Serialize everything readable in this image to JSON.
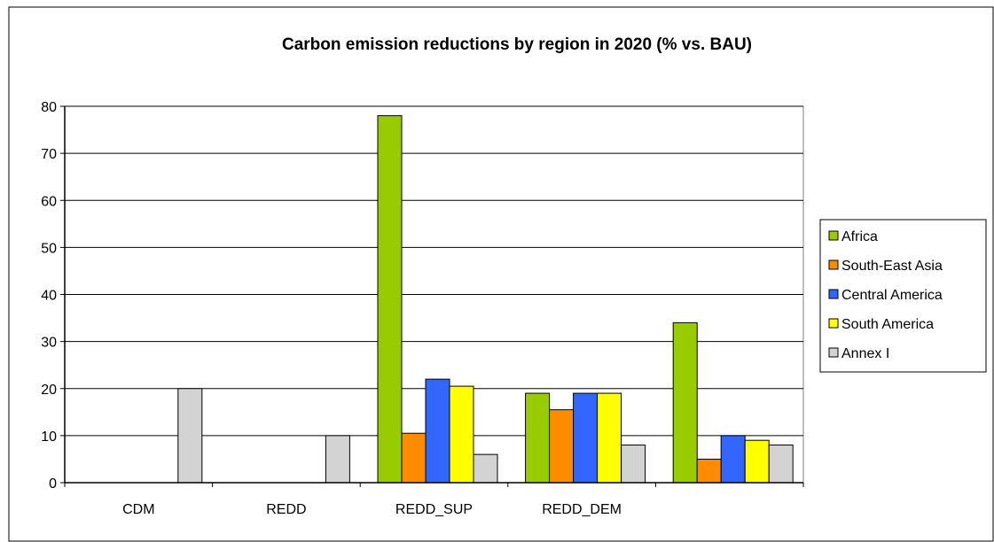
{
  "chart_data": {
    "type": "bar",
    "title": "Carbon emission  reductions  by region  in 2020  (% vs. BAU)",
    "xlabel": "",
    "ylabel": "",
    "ylim": [
      0,
      80
    ],
    "yticks": [
      0,
      10,
      20,
      30,
      40,
      50,
      60,
      70,
      80
    ],
    "grid": true,
    "legend_position": "right",
    "categories": [
      "CDM",
      "REDD",
      "REDD_SUP",
      "REDD_DEM",
      ""
    ],
    "series": [
      {
        "name": "Africa",
        "color": "#99cc00",
        "values": [
          0,
          0,
          78,
          19,
          34
        ]
      },
      {
        "name": "South-East Asia",
        "color": "#ff8c00",
        "values": [
          0,
          0,
          10.5,
          15.5,
          5
        ]
      },
      {
        "name": "Central America",
        "color": "#3366ff",
        "values": [
          0,
          0,
          22,
          19,
          10
        ]
      },
      {
        "name": "South America",
        "color": "#ffff00",
        "values": [
          0,
          0,
          20.5,
          19,
          9
        ]
      },
      {
        "name": "Annex I",
        "color": "#d3d3d3",
        "values": [
          20,
          10,
          6,
          8,
          8
        ]
      }
    ]
  }
}
